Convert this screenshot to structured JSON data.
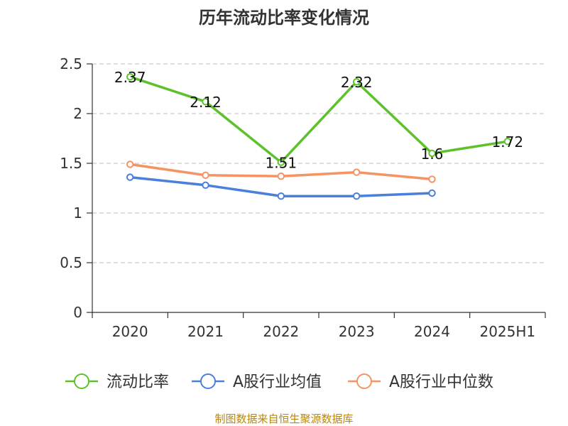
{
  "chart_data": {
    "type": "line",
    "title": "历年流动比率变化情况",
    "categories": [
      "2020",
      "2021",
      "2022",
      "2023",
      "2024",
      "2025H1"
    ],
    "yticks": [
      "0",
      "0.5",
      "1",
      "1.5",
      "2",
      "2.5"
    ],
    "ylim": [
      0,
      2.5
    ],
    "grid": true,
    "legend_position": "bottom",
    "series": [
      {
        "name": "流动比率",
        "color": "#5cc12b",
        "values": [
          2.37,
          2.12,
          1.51,
          2.32,
          1.6,
          1.72
        ],
        "labels": [
          "2.37",
          "2.12",
          "1.51",
          "2.32",
          "1.6",
          "1.72"
        ],
        "show_labels": true
      },
      {
        "name": "A股行业均值",
        "color": "#4a7fdc",
        "values": [
          1.36,
          1.28,
          1.17,
          1.17,
          1.2,
          null
        ],
        "show_labels": false
      },
      {
        "name": "A股行业中位数",
        "color": "#f59362",
        "values": [
          1.49,
          1.38,
          1.37,
          1.41,
          1.34,
          null
        ],
        "show_labels": false
      }
    ]
  },
  "source": "制图数据来自恒生聚源数据库"
}
